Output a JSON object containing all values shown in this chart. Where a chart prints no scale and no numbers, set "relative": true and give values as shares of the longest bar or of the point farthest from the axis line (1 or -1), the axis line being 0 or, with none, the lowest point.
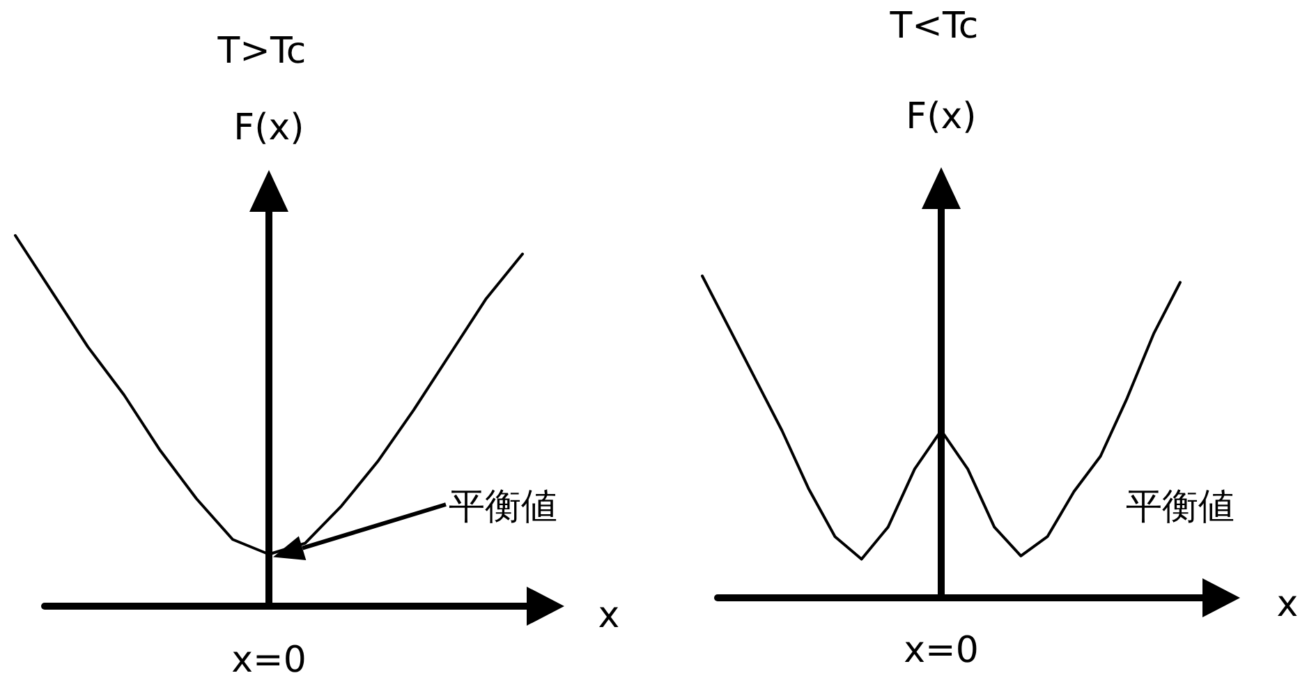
{
  "chart_data": [
    {
      "type": "line",
      "title": "T>Tc",
      "ylabel": "F(x)",
      "xlabel": "x",
      "relative": true,
      "categories": [
        null,
        null,
        null,
        null,
        null,
        null,
        null,
        null,
        null,
        null,
        null,
        null,
        null,
        null,
        null
      ],
      "series": [
        {
          "color": "#000000",
          "values": [
            1,
            0.85,
            0.7,
            0.57,
            0.42,
            0.29,
            0.18,
            0.14,
            0.17,
            0.27,
            0.39,
            0.53,
            0.68,
            0.83,
            0.95
          ]
        }
      ],
      "annotations": [
        "x=0",
        "平衡値"
      ]
    },
    {
      "type": "line",
      "title": "T<Tc",
      "ylabel": "F(x)",
      "xlabel": "x",
      "relative": true,
      "categories": [
        null,
        null,
        null,
        null,
        null,
        null,
        null,
        null,
        null,
        null,
        null,
        null,
        null,
        null,
        null,
        null,
        null,
        null,
        null
      ],
      "series": [
        {
          "color": "#000000",
          "values": [
            1,
            0.84,
            0.68,
            0.52,
            0.34,
            0.19,
            0.12,
            0.22,
            0.4,
            0.52,
            0.4,
            0.22,
            0.13,
            0.19,
            0.33,
            0.44,
            0.62,
            0.82,
            0.98
          ]
        }
      ],
      "annotations": [
        "x=0",
        "平衡値"
      ]
    }
  ]
}
